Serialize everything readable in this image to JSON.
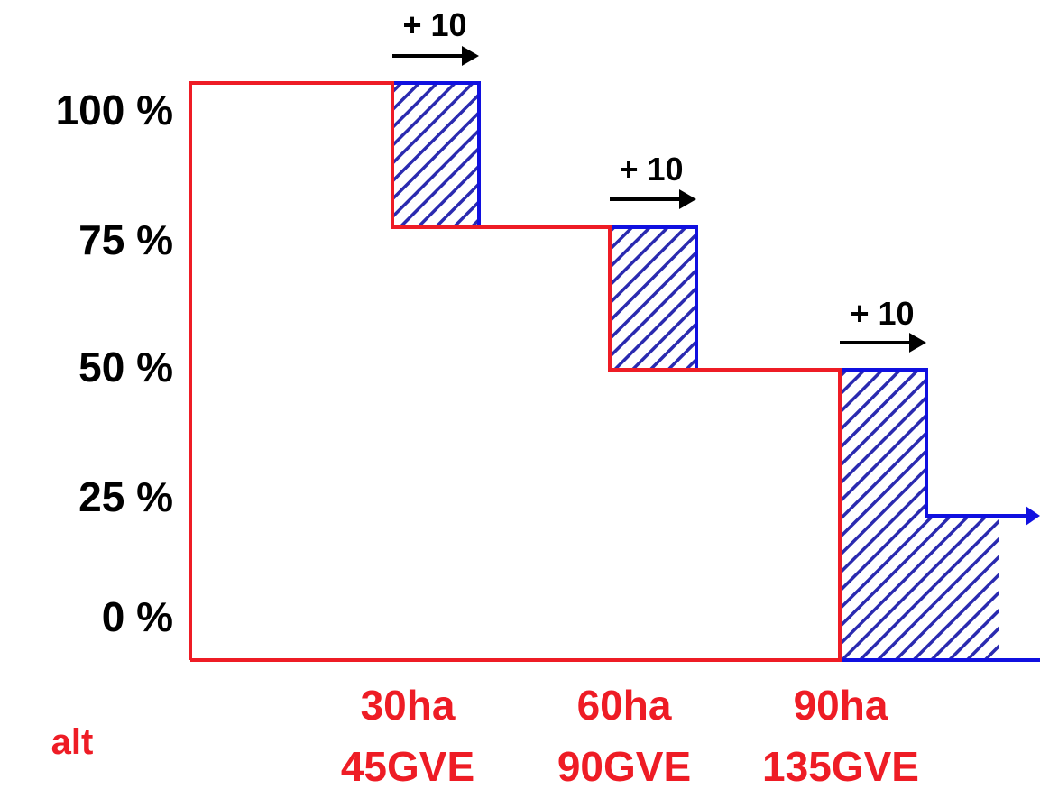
{
  "y_axis": {
    "labels": [
      "100 %",
      "75 %",
      "50 %",
      "25 %",
      "0 %"
    ]
  },
  "x_axis": {
    "thresholds": [
      {
        "area": "30ha",
        "livestock": "45GVE"
      },
      {
        "area": "60ha",
        "livestock": "90GVE"
      },
      {
        "area": "90ha",
        "livestock": "135GVE"
      }
    ]
  },
  "legend": {
    "old_label": "alt"
  },
  "shift_note": "+ 10",
  "colors": {
    "old_line": "#ee1c25",
    "new_line": "#1010e0",
    "hatch": "#2a2ab0",
    "text": "#000000",
    "label_red": "#ee1c25"
  }
}
